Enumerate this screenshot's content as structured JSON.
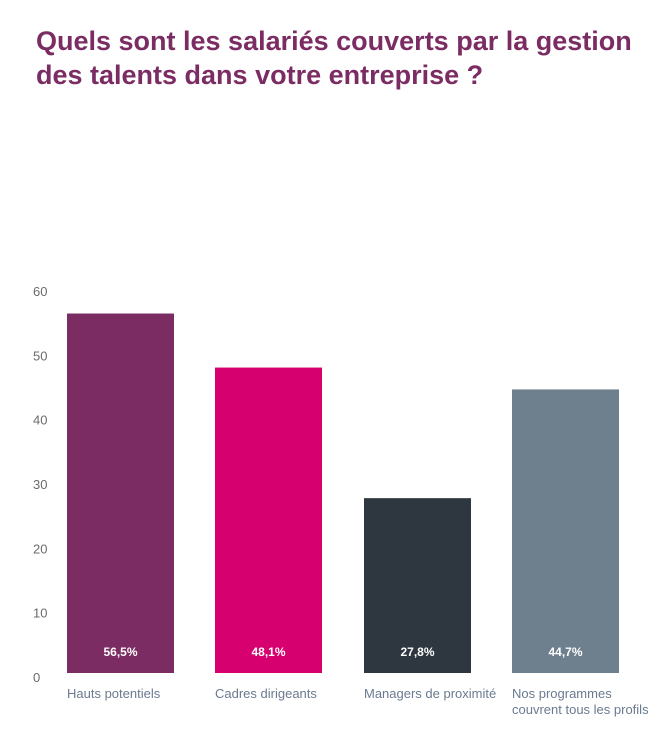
{
  "chart_data": {
    "type": "bar",
    "title": "Quels sont les salariés couverts par la gestion des talents dans votre entreprise ?",
    "categories": [
      [
        "Hauts potentiels"
      ],
      [
        "Cadres dirigeants"
      ],
      [
        "Managers de proximité"
      ],
      [
        "Nos programmes",
        "couvrent tous les profils"
      ]
    ],
    "values": [
      56.5,
      48.1,
      27.8,
      44.7
    ],
    "value_labels": [
      "56,5%",
      "48,1%",
      "27,8%",
      "44,7%"
    ],
    "colors": [
      "#7b2d63",
      "#d6006e",
      "#2e3740",
      "#6e7f8e"
    ],
    "yticks": [
      0,
      10,
      20,
      30,
      40,
      50,
      60
    ],
    "ylim": [
      0,
      60
    ],
    "xlabel": "",
    "ylabel": "",
    "grid": false,
    "legend": "none"
  }
}
